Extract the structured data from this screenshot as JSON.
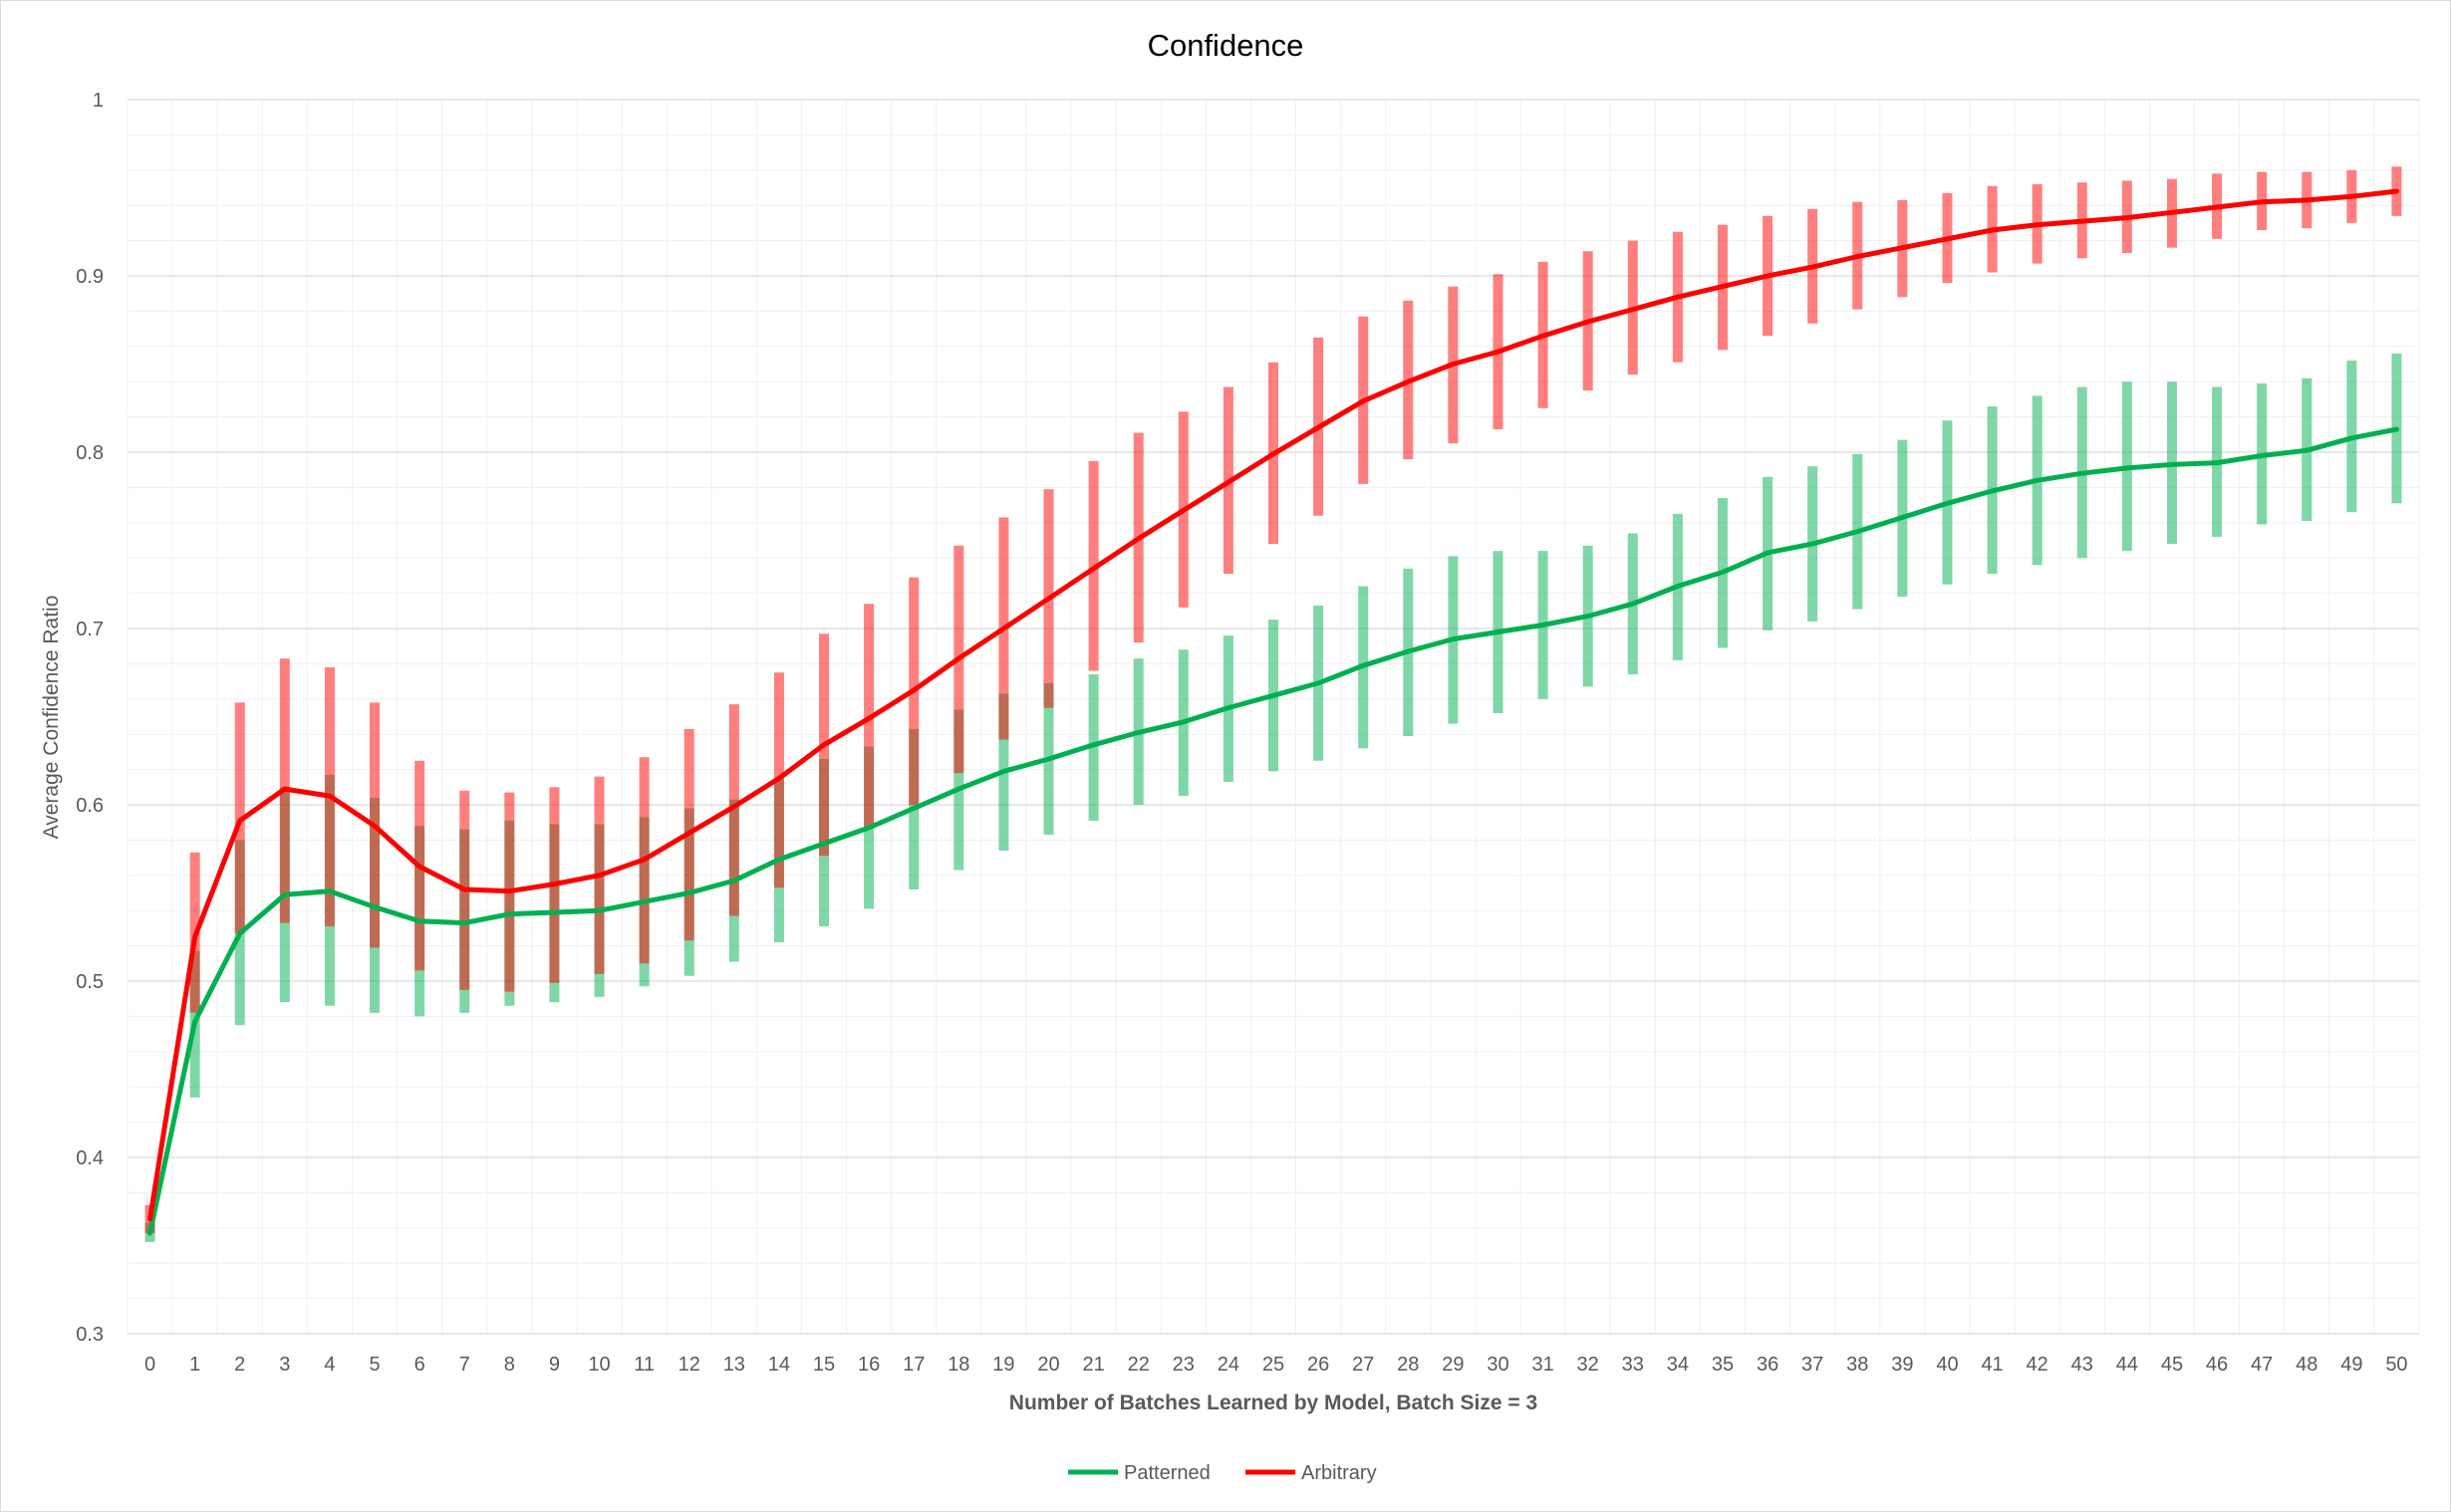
{
  "chart_data": {
    "type": "line",
    "title": "Confidence",
    "xlabel": "Number of Batches Learned by Model, Batch Size = 3",
    "ylabel": "Average Confidence Ratio",
    "ylim": [
      0.3,
      1
    ],
    "yticks": [
      "0.3",
      "0.4",
      "0.5",
      "0.6",
      "0.7",
      "0.8",
      "0.9",
      "1"
    ],
    "grid": true,
    "legend_position": "bottom",
    "x": [
      0,
      1,
      2,
      3,
      4,
      5,
      6,
      7,
      8,
      9,
      10,
      11,
      12,
      13,
      14,
      15,
      16,
      17,
      18,
      19,
      20,
      21,
      22,
      23,
      24,
      25,
      26,
      27,
      28,
      29,
      30,
      31,
      32,
      33,
      34,
      35,
      36,
      37,
      38,
      39,
      40,
      41,
      42,
      43,
      44,
      45,
      46,
      47,
      48,
      49,
      50
    ],
    "series": [
      {
        "name": "Patterned",
        "color": "#00b050",
        "error_color": "#7dd8a8",
        "values": [
          0.357,
          0.477,
          0.527,
          0.549,
          0.551,
          0.542,
          0.534,
          0.533,
          0.538,
          0.539,
          0.54,
          0.545,
          0.55,
          0.557,
          0.569,
          0.578,
          0.587,
          0.598,
          0.609,
          0.619,
          0.626,
          0.634,
          0.641,
          0.647,
          0.655,
          0.662,
          0.669,
          0.679,
          0.687,
          0.694,
          0.698,
          0.702,
          0.707,
          0.714,
          0.724,
          0.732,
          0.743,
          0.748,
          0.755,
          0.763,
          0.771,
          0.778,
          0.784,
          0.788,
          0.791,
          0.793,
          0.794,
          0.798,
          0.801,
          0.808,
          0.813
        ],
        "lower": [
          0.352,
          0.434,
          0.475,
          0.488,
          0.486,
          0.482,
          0.48,
          0.482,
          0.486,
          0.488,
          0.491,
          0.497,
          0.503,
          0.511,
          0.522,
          0.531,
          0.541,
          0.552,
          0.563,
          0.574,
          0.583,
          0.591,
          0.6,
          0.605,
          0.613,
          0.619,
          0.625,
          0.632,
          0.639,
          0.646,
          0.652,
          0.66,
          0.667,
          0.674,
          0.682,
          0.689,
          0.699,
          0.704,
          0.711,
          0.718,
          0.725,
          0.731,
          0.736,
          0.74,
          0.744,
          0.748,
          0.752,
          0.759,
          0.761,
          0.766,
          0.771
        ],
        "upper": [
          0.363,
          0.517,
          0.58,
          0.61,
          0.617,
          0.604,
          0.588,
          0.586,
          0.591,
          0.589,
          0.589,
          0.593,
          0.598,
          0.603,
          0.615,
          0.626,
          0.633,
          0.643,
          0.654,
          0.663,
          0.669,
          0.674,
          0.683,
          0.688,
          0.696,
          0.705,
          0.713,
          0.724,
          0.734,
          0.741,
          0.744,
          0.744,
          0.747,
          0.754,
          0.765,
          0.774,
          0.786,
          0.792,
          0.799,
          0.807,
          0.818,
          0.826,
          0.832,
          0.837,
          0.84,
          0.84,
          0.837,
          0.839,
          0.842,
          0.852,
          0.856
        ]
      },
      {
        "name": "Arbitrary",
        "color": "#ff0000",
        "error_color": "#ff7f7f",
        "values": [
          0.365,
          0.525,
          0.591,
          0.609,
          0.605,
          0.588,
          0.565,
          0.552,
          0.551,
          0.555,
          0.56,
          0.569,
          0.584,
          0.599,
          0.615,
          0.634,
          0.649,
          0.665,
          0.683,
          0.7,
          0.717,
          0.734,
          0.751,
          0.767,
          0.783,
          0.799,
          0.814,
          0.829,
          0.84,
          0.85,
          0.857,
          0.866,
          0.874,
          0.881,
          0.888,
          0.894,
          0.9,
          0.905,
          0.911,
          0.916,
          0.921,
          0.926,
          0.929,
          0.931,
          0.933,
          0.936,
          0.939,
          0.942,
          0.943,
          0.945,
          0.948
        ],
        "lower": [
          0.357,
          0.482,
          0.527,
          0.533,
          0.531,
          0.519,
          0.506,
          0.495,
          0.494,
          0.499,
          0.504,
          0.51,
          0.523,
          0.537,
          0.553,
          0.571,
          0.587,
          0.6,
          0.618,
          0.637,
          0.655,
          0.676,
          0.692,
          0.712,
          0.731,
          0.748,
          0.764,
          0.782,
          0.796,
          0.805,
          0.813,
          0.825,
          0.835,
          0.844,
          0.851,
          0.858,
          0.866,
          0.873,
          0.881,
          0.888,
          0.896,
          0.902,
          0.907,
          0.91,
          0.913,
          0.916,
          0.921,
          0.926,
          0.927,
          0.93,
          0.934
        ],
        "upper": [
          0.373,
          0.573,
          0.658,
          0.683,
          0.678,
          0.658,
          0.625,
          0.608,
          0.607,
          0.61,
          0.616,
          0.627,
          0.643,
          0.657,
          0.675,
          0.697,
          0.714,
          0.729,
          0.747,
          0.763,
          0.779,
          0.795,
          0.811,
          0.823,
          0.837,
          0.851,
          0.865,
          0.877,
          0.886,
          0.894,
          0.901,
          0.908,
          0.914,
          0.92,
          0.925,
          0.929,
          0.934,
          0.938,
          0.942,
          0.943,
          0.947,
          0.951,
          0.952,
          0.953,
          0.954,
          0.955,
          0.958,
          0.959,
          0.959,
          0.96,
          0.962
        ]
      }
    ]
  }
}
